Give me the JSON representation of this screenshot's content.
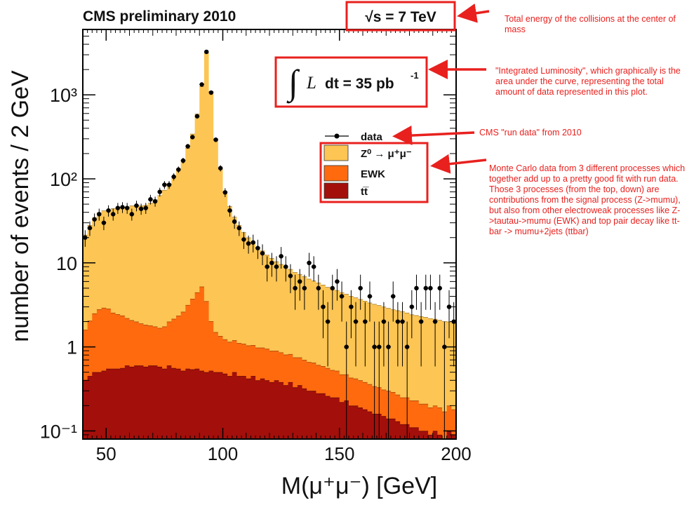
{
  "chart_data": {
    "type": "area",
    "stacked": true,
    "title": "CMS preliminary 2010",
    "energy_label": "√s = 7 TeV",
    "lumi_integral": "∫",
    "lumi_symbol": "L",
    "lumi_value": "dt = 35 pb",
    "lumi_exponent": "-1",
    "xlabel": "M(μ⁺μ⁻) [GeV]",
    "ylabel": "number of events / 2 GeV",
    "xlim": [
      40,
      200
    ],
    "ylim": [
      0.08,
      6000
    ],
    "yscale": "log",
    "grid": false,
    "legend_position": "top-right",
    "x_ticks": [
      "50",
      "100",
      "150",
      "200"
    ],
    "x_tick_values": [
      50,
      100,
      150,
      200
    ],
    "y_ticks": [
      "10⁻¹",
      "1",
      "10",
      "10²",
      "10³"
    ],
    "y_tick_values": [
      0.1,
      1,
      10,
      100,
      1000
    ],
    "legend": {
      "data": "data",
      "zmumu": "Z⁰ → μ⁺μ⁻",
      "ewk": "EWK",
      "ttbar": "tt̅"
    },
    "colors": {
      "zmumu": "#fdc553",
      "ewk": "#ff6a0f",
      "ttbar": "#a30f0b",
      "data": "#000000",
      "annotation": "#e8211e"
    },
    "bin_width": 2,
    "bin_low_edges": [
      40,
      42,
      44,
      46,
      48,
      50,
      52,
      54,
      56,
      58,
      60,
      62,
      64,
      66,
      68,
      70,
      72,
      74,
      76,
      78,
      80,
      82,
      84,
      86,
      88,
      90,
      92,
      94,
      96,
      98,
      100,
      102,
      104,
      106,
      108,
      110,
      112,
      114,
      116,
      118,
      120,
      122,
      124,
      126,
      128,
      130,
      132,
      134,
      136,
      138,
      140,
      142,
      144,
      146,
      148,
      150,
      152,
      154,
      156,
      158,
      160,
      162,
      164,
      166,
      168,
      170,
      172,
      174,
      176,
      178,
      180,
      182,
      184,
      186,
      188,
      190,
      192,
      194,
      196,
      198
    ],
    "series": [
      {
        "name": "t̅t",
        "stack": "bottom",
        "values": [
          0.4,
          0.45,
          0.5,
          0.5,
          0.52,
          0.55,
          0.55,
          0.55,
          0.56,
          0.6,
          0.58,
          0.6,
          0.6,
          0.58,
          0.6,
          0.6,
          0.58,
          0.55,
          0.6,
          0.56,
          0.55,
          0.52,
          0.55,
          0.54,
          0.55,
          0.52,
          0.5,
          0.52,
          0.5,
          0.5,
          0.48,
          0.45,
          0.5,
          0.45,
          0.45,
          0.42,
          0.45,
          0.4,
          0.42,
          0.4,
          0.38,
          0.4,
          0.38,
          0.35,
          0.38,
          0.33,
          0.35,
          0.32,
          0.3,
          0.3,
          0.28,
          0.28,
          0.26,
          0.25,
          0.25,
          0.22,
          0.23,
          0.2,
          0.2,
          0.19,
          0.18,
          0.17,
          0.16,
          0.16,
          0.15,
          0.14,
          0.14,
          0.13,
          0.12,
          0.12,
          0.11,
          0.11,
          0.1,
          0.1,
          0.09,
          0.1,
          0.09,
          0.08,
          0.1,
          0.09
        ]
      },
      {
        "name": "EWK",
        "stack": "middle",
        "values": [
          1.2,
          1.6,
          2.0,
          2.3,
          2.4,
          2.3,
          2.0,
          1.9,
          1.8,
          1.6,
          1.5,
          1.4,
          1.3,
          1.25,
          1.2,
          1.15,
          1.1,
          1.2,
          1.4,
          1.6,
          1.8,
          2.1,
          2.6,
          3.2,
          3.9,
          4.7,
          3.0,
          1.5,
          1.0,
          0.85,
          0.75,
          0.7,
          0.7,
          0.66,
          0.64,
          0.62,
          0.6,
          0.58,
          0.56,
          0.55,
          0.52,
          0.5,
          0.48,
          0.46,
          0.44,
          0.42,
          0.4,
          0.38,
          0.36,
          0.35,
          0.33,
          0.31,
          0.3,
          0.28,
          0.27,
          0.25,
          0.24,
          0.23,
          0.22,
          0.21,
          0.2,
          0.19,
          0.18,
          0.17,
          0.16,
          0.16,
          0.15,
          0.14,
          0.13,
          0.13,
          0.12,
          0.12,
          0.11,
          0.11,
          0.1,
          0.1,
          0.1,
          0.09,
          0.1,
          0.09
        ]
      },
      {
        "name": "Z⁰ → μ⁺μ⁻",
        "stack": "top",
        "values": [
          20,
          26,
          32,
          37,
          39,
          40,
          42,
          43,
          44,
          44,
          46,
          46,
          46,
          47,
          50,
          55,
          62,
          72,
          86,
          105,
          130,
          165,
          230,
          340,
          590,
          1260,
          3150,
          1100,
          300,
          130,
          70,
          46,
          34,
          27,
          22,
          19,
          16.5,
          14.5,
          13,
          11.5,
          10.5,
          9.5,
          8.8,
          8.2,
          7.6,
          7.0,
          6.6,
          6.2,
          5.8,
          5.5,
          5.2,
          4.9,
          4.6,
          4.4,
          4.2,
          4.0,
          3.8,
          3.6,
          3.45,
          3.3,
          3.15,
          3.0,
          2.9,
          2.8,
          2.7,
          2.6,
          2.5,
          2.45,
          2.4,
          2.3,
          2.2,
          2.15,
          2.1,
          2.05,
          2.0,
          1.95,
          1.9,
          1.85,
          1.8,
          1.75
        ]
      },
      {
        "name": "data",
        "kind": "points",
        "x": [
          41,
          43,
          45,
          47,
          49,
          51,
          53,
          55,
          57,
          59,
          61,
          63,
          65,
          67,
          69,
          71,
          73,
          75,
          77,
          79,
          81,
          83,
          85,
          87,
          89,
          91,
          93,
          95,
          97,
          99,
          101,
          103,
          105,
          107,
          109,
          111,
          113,
          115,
          117,
          119,
          121,
          123,
          125,
          127,
          129,
          131,
          133,
          135,
          137,
          139,
          141,
          143,
          145,
          147,
          149,
          151,
          153,
          155,
          157,
          159,
          161,
          163,
          165,
          167,
          169,
          171,
          173,
          175,
          177,
          179,
          181,
          183,
          185,
          187,
          189,
          191,
          193,
          195,
          197,
          199
        ],
        "values": [
          20,
          26,
          33,
          38,
          30,
          42,
          38,
          45,
          46,
          45,
          38,
          48,
          44,
          45,
          57,
          54,
          70,
          85,
          85,
          106,
          129,
          165,
          244,
          314,
          556,
          1327,
          3250,
          1063,
          292,
          134,
          69,
          42,
          31,
          26,
          19,
          17,
          17.5,
          15,
          13,
          9,
          10,
          9,
          12,
          9,
          7,
          5,
          6,
          5,
          10,
          9,
          5,
          3,
          2,
          5,
          6,
          4,
          1,
          3,
          2,
          5,
          2,
          4,
          1,
          1,
          2,
          1,
          4,
          2,
          2,
          1,
          3,
          5,
          2,
          5,
          5,
          2,
          5,
          1,
          3,
          2
        ]
      }
    ]
  },
  "annotations": {
    "energy": "Total energy of the collisions at the center of mass",
    "luminosity": "\"Integrated Luminosity\", which graphically is the area under the curve, representing the total amount of data represented in this plot.",
    "data": "CMS \"run data\" from 2010",
    "montecarlo": "Monte Carlo data from 3 different processes which together add up to a pretty good fit with run data. Those 3 processes (from the top, down) are contributions from the signal process (Z->mumu), but also from other electroweak processes like Z->tautau->mumu (EWK) and top pair decay like tt-bar -> mumu+2jets (ttbar)"
  }
}
